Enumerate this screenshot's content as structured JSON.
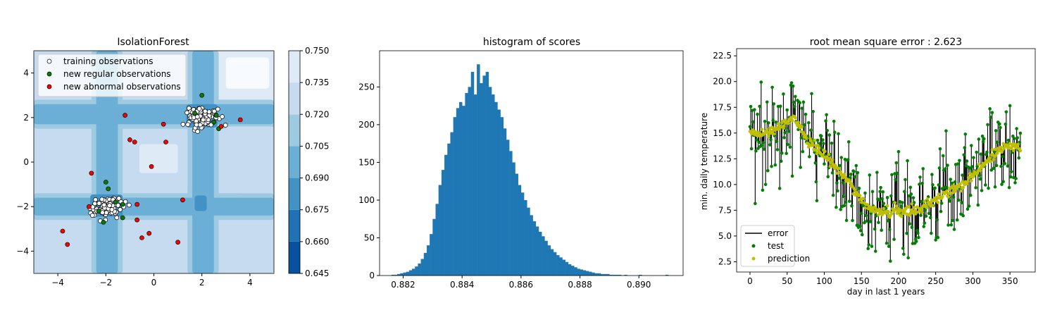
{
  "chart_data": [
    {
      "type": "contour-scatter",
      "title": "IsolationForest",
      "xlim": [
        -5,
        5
      ],
      "ylim": [
        -5,
        5
      ],
      "xticks": [
        -4,
        -2,
        0,
        2,
        4
      ],
      "yticks": [
        -4,
        -2,
        0,
        2,
        4
      ],
      "colorbar": {
        "ticks": [
          0.645,
          0.66,
          0.675,
          0.69,
          0.705,
          0.72,
          0.735,
          0.75
        ],
        "tick_labels": [
          "0.645",
          "0.660",
          "0.675",
          "0.690",
          "0.705",
          "0.720",
          "0.735",
          "0.750"
        ],
        "colors": [
          "#08306b",
          "#08519c",
          "#2171b5",
          "#4292c6",
          "#6baed6",
          "#9ecae1",
          "#c6dbef",
          "#deebf7",
          "#f7fbff"
        ]
      },
      "clusters": [
        {
          "center": [
            2.0,
            2.0
          ],
          "rx": 0.7,
          "ry": 0.45
        },
        {
          "center": [
            -2.0,
            -2.0
          ],
          "rx": 0.7,
          "ry": 0.45
        }
      ],
      "new_regular": [
        [
          2.6,
          2.1
        ],
        [
          2.7,
          1.5
        ],
        [
          2.0,
          3.0
        ],
        [
          1.7,
          2.2
        ],
        [
          -2.0,
          -0.9
        ],
        [
          -1.9,
          -1.2
        ],
        [
          -2.3,
          -2.2
        ],
        [
          -1.6,
          -1.8
        ],
        [
          -1.3,
          -1.9
        ],
        [
          -1.3,
          -2.5
        ],
        [
          -2.1,
          -2.7
        ],
        [
          2.5,
          1.8
        ]
      ],
      "new_abnormal": [
        [
          -3.8,
          -3.1
        ],
        [
          -3.6,
          -3.7
        ],
        [
          -2.6,
          -0.5
        ],
        [
          -2.7,
          -2.0
        ],
        [
          -1.2,
          2.1
        ],
        [
          -1.0,
          1.0
        ],
        [
          -0.8,
          0.9
        ],
        [
          -0.7,
          -1.9
        ],
        [
          -0.7,
          -2.6
        ],
        [
          -0.5,
          -3.4
        ],
        [
          -0.2,
          -3.2
        ],
        [
          -0.1,
          -0.2
        ],
        [
          0.4,
          1.7
        ],
        [
          0.5,
          0.9
        ],
        [
          1.0,
          -3.6
        ],
        [
          1.2,
          -1.7
        ],
        [
          2.8,
          1.6
        ],
        [
          3.6,
          1.9
        ]
      ],
      "legend": {
        "position": "upper-left",
        "entries": [
          {
            "label": "training observations",
            "color": "#ffffff"
          },
          {
            "label": "new regular observations",
            "color": "#008000"
          },
          {
            "label": "new abnormal observations",
            "color": "#ff0000"
          }
        ]
      }
    },
    {
      "type": "histogram",
      "title": "histogram of scores",
      "xlim": [
        0.8812,
        0.8915
      ],
      "ylim": [
        0,
        298
      ],
      "xticks": [
        0.882,
        0.884,
        0.886,
        0.888,
        0.89
      ],
      "xtick_labels": [
        "0.882",
        "0.884",
        "0.886",
        "0.888",
        "0.890"
      ],
      "yticks": [
        0,
        50,
        100,
        150,
        200,
        250
      ],
      "bar_color": "#1f77b4",
      "bin_start": 0.8816,
      "bin_width": 0.0001,
      "counts": [
        1,
        1,
        2,
        3,
        4,
        5,
        7,
        9,
        12,
        16,
        22,
        30,
        40,
        55,
        75,
        95,
        120,
        140,
        160,
        175,
        190,
        210,
        222,
        230,
        225,
        242,
        250,
        270,
        240,
        280,
        255,
        265,
        270,
        250,
        240,
        230,
        220,
        210,
        195,
        180,
        165,
        150,
        135,
        120,
        110,
        100,
        90,
        80,
        72,
        65,
        58,
        52,
        46,
        40,
        35,
        31,
        27,
        24,
        21,
        18,
        15,
        13,
        11,
        9,
        8,
        7,
        6,
        5,
        4,
        3,
        3,
        2,
        2,
        2,
        1,
        1,
        1,
        1,
        0,
        1,
        0,
        0,
        0,
        0,
        1,
        0,
        0,
        0,
        0,
        0,
        0,
        0,
        0,
        1
      ]
    },
    {
      "type": "line-scatter",
      "title": "root mean square error : 2.623",
      "xlabel": "day in last 1 years",
      "ylabel": "min. daily temperature",
      "xlim": [
        -18,
        384
      ],
      "ylim": [
        1.5,
        23.2
      ],
      "xticks": [
        0,
        50,
        100,
        150,
        200,
        250,
        300,
        350
      ],
      "yticks": [
        2.5,
        5.0,
        7.5,
        10.0,
        12.5,
        15.0,
        17.5,
        20.0,
        22.5
      ],
      "ytick_labels": [
        "2.5",
        "5.0",
        "7.5",
        "10.0",
        "12.5",
        "15.0",
        "17.5",
        "20.0",
        "22.5"
      ],
      "n_days": 365,
      "prediction_trend": [
        [
          0,
          14.8
        ],
        [
          20,
          14.9
        ],
        [
          40,
          15.6
        ],
        [
          60,
          16.5
        ],
        [
          75,
          14.5
        ],
        [
          100,
          12.8
        ],
        [
          125,
          11.0
        ],
        [
          150,
          8.5
        ],
        [
          175,
          7.2
        ],
        [
          200,
          7.4
        ],
        [
          225,
          7.6
        ],
        [
          250,
          8.5
        ],
        [
          275,
          9.6
        ],
        [
          300,
          10.8
        ],
        [
          325,
          12.8
        ],
        [
          345,
          13.8
        ],
        [
          365,
          13.5
        ]
      ],
      "legend": {
        "position": "lower-left",
        "entries": [
          {
            "label": "error",
            "color": "#000000"
          },
          {
            "label": "test",
            "color": "#008000"
          },
          {
            "label": "prediction",
            "color": "#bfbf00"
          }
        ]
      }
    }
  ]
}
